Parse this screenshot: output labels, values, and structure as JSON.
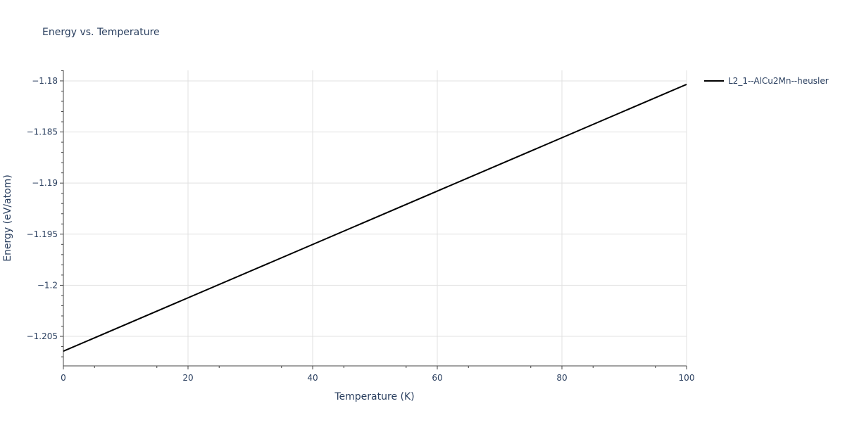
{
  "chart_data": {
    "type": "line",
    "title": "Energy vs. Temperature",
    "xlabel": "Temperature (K)",
    "ylabel": "Energy (eV/atom)",
    "xlim": [
      0,
      100
    ],
    "ylim": [
      -1.20789,
      -1.17897
    ],
    "xticks": [
      0,
      20,
      40,
      60,
      80,
      100
    ],
    "xtick_labels": [
      "0",
      "20",
      "40",
      "60",
      "80",
      "100"
    ],
    "yticks": [
      -1.18,
      -1.185,
      -1.19,
      -1.195,
      -1.2,
      -1.205
    ],
    "ytick_labels": [
      "−1.18",
      "−1.185",
      "−1.19",
      "−1.195",
      "−1.2",
      "−1.205"
    ],
    "grid": true,
    "legend_position": "top-right",
    "series": [
      {
        "name": "L2_1--AlCu2Mn--heusler",
        "color": "#000000",
        "x": [
          0,
          100
        ],
        "y": [
          -1.20645,
          -1.18034
        ]
      }
    ]
  }
}
